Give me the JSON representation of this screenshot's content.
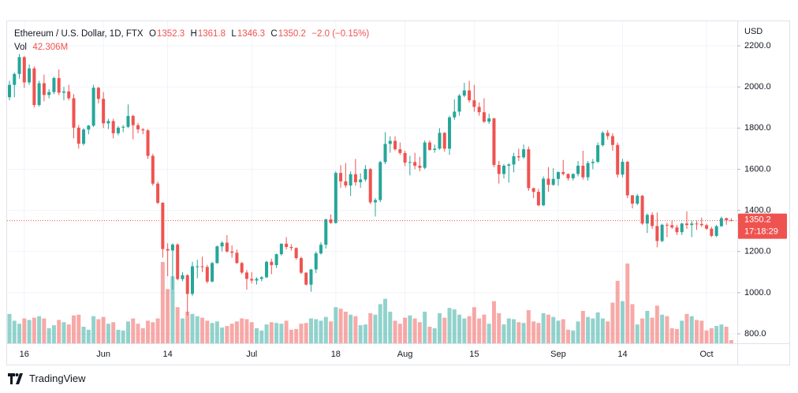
{
  "chart_data": {
    "type": "candlestick",
    "legend": {
      "symbol": "Ethereum / U.S. Dollar, 1D, FTX",
      "ohlc_letters": [
        "O",
        "H",
        "L",
        "C"
      ],
      "change_label": "−2.0 (−0.15%)",
      "volume_name": "Vol",
      "volume_label": "42.306M"
    },
    "currency": "USD",
    "countdown": "17:18:29",
    "brand": "TradingView",
    "up_color": "#26a69a",
    "down_color": "#ef5350",
    "grid": true,
    "ylim": [
      754,
      2319
    ],
    "yticks": [
      {
        "value": 800,
        "label": "800.0"
      },
      {
        "value": 1000,
        "label": "1000.0"
      },
      {
        "value": 1200,
        "label": "1200.0"
      },
      {
        "value": 1400,
        "label": "1400.0"
      },
      {
        "value": 1600,
        "label": "1600.0"
      },
      {
        "value": 1800,
        "label": "1800.0"
      },
      {
        "value": 2000,
        "label": "2000.0"
      },
      {
        "value": 2200,
        "label": "2200.0"
      }
    ],
    "xticks": [
      {
        "value": "May 16",
        "label": "16"
      },
      {
        "value": "Jun 1",
        "label": "Jun"
      },
      {
        "value": "Jun 14",
        "label": "14"
      },
      {
        "value": "Jul 1",
        "label": "Jul"
      },
      {
        "value": "Jul 18",
        "label": "18"
      },
      {
        "value": "Aug 1",
        "label": "Aug"
      },
      {
        "value": "Aug 15",
        "label": "15"
      },
      {
        "value": "Sep 1",
        "label": "Sep"
      },
      {
        "value": "Sep 14",
        "label": "14"
      },
      {
        "value": "Oct 1",
        "label": "Oct"
      }
    ],
    "categories": [
      "May 13",
      "May 14",
      "May 15",
      "May 16",
      "May 17",
      "May 18",
      "May 19",
      "May 20",
      "May 21",
      "May 22",
      "May 23",
      "May 24",
      "May 25",
      "May 26",
      "May 27",
      "May 28",
      "May 29",
      "May 30",
      "May 31",
      "Jun 1",
      "Jun 2",
      "Jun 3",
      "Jun 4",
      "Jun 5",
      "Jun 6",
      "Jun 7",
      "Jun 8",
      "Jun 9",
      "Jun 10",
      "Jun 11",
      "Jun 12",
      "Jun 13",
      "Jun 14",
      "Jun 15",
      "Jun 16",
      "Jun 17",
      "Jun 18",
      "Jun 19",
      "Jun 20",
      "Jun 21",
      "Jun 22",
      "Jun 23",
      "Jun 24",
      "Jun 25",
      "Jun 26",
      "Jun 27",
      "Jun 28",
      "Jun 29",
      "Jun 30",
      "Jul 1",
      "Jul 2",
      "Jul 3",
      "Jul 4",
      "Jul 5",
      "Jul 6",
      "Jul 7",
      "Jul 8",
      "Jul 9",
      "Jul 10",
      "Jul 11",
      "Jul 12",
      "Jul 13",
      "Jul 14",
      "Jul 15",
      "Jul 16",
      "Jul 17",
      "Jul 18",
      "Jul 19",
      "Jul 20",
      "Jul 21",
      "Jul 22",
      "Jul 23",
      "Jul 24",
      "Jul 25",
      "Jul 26",
      "Jul 27",
      "Jul 28",
      "Jul 29",
      "Jul 30",
      "Jul 31",
      "Aug 1",
      "Aug 2",
      "Aug 3",
      "Aug 4",
      "Aug 5",
      "Aug 6",
      "Aug 7",
      "Aug 8",
      "Aug 9",
      "Aug 10",
      "Aug 11",
      "Aug 12",
      "Aug 13",
      "Aug 14",
      "Aug 15",
      "Aug 16",
      "Aug 17",
      "Aug 18",
      "Aug 19",
      "Aug 20",
      "Aug 21",
      "Aug 22",
      "Aug 23",
      "Aug 24",
      "Aug 25",
      "Aug 26",
      "Aug 27",
      "Aug 28",
      "Aug 29",
      "Aug 30",
      "Aug 31",
      "Sep 1",
      "Sep 2",
      "Sep 3",
      "Sep 4",
      "Sep 5",
      "Sep 6",
      "Sep 7",
      "Sep 8",
      "Sep 9",
      "Sep 10",
      "Sep 11",
      "Sep 12",
      "Sep 13",
      "Sep 14",
      "Sep 15",
      "Sep 16",
      "Sep 17",
      "Sep 18",
      "Sep 19",
      "Sep 20",
      "Sep 21",
      "Sep 22",
      "Sep 23",
      "Sep 24",
      "Sep 25",
      "Sep 26",
      "Sep 27",
      "Sep 28",
      "Sep 29",
      "Sep 30",
      "Oct 1",
      "Oct 2",
      "Oct 3",
      "Oct 4",
      "Oct 5",
      "Oct 6"
    ],
    "candle_fields": [
      "open",
      "high",
      "low",
      "close",
      "volume"
    ],
    "candles": [
      [
        1950,
        2030,
        1935,
        2010,
        390
      ],
      [
        2010,
        2070,
        1950,
        2063,
        300
      ],
      [
        2063,
        2160,
        2040,
        2145,
        260
      ],
      [
        2145,
        2150,
        1995,
        2022,
        330
      ],
      [
        2022,
        2110,
        2010,
        2090,
        310
      ],
      [
        2090,
        2100,
        1900,
        1912,
        340
      ],
      [
        1912,
        2030,
        1905,
        2018,
        360
      ],
      [
        2018,
        2060,
        1930,
        1961,
        330
      ],
      [
        1961,
        1990,
        1945,
        1975,
        200
      ],
      [
        1975,
        2050,
        1965,
        2043,
        240
      ],
      [
        2043,
        2085,
        1960,
        1972,
        310
      ],
      [
        1972,
        2000,
        1935,
        1978,
        280
      ],
      [
        1978,
        2010,
        1935,
        1945,
        250
      ],
      [
        1945,
        1965,
        1750,
        1802,
        370
      ],
      [
        1802,
        1815,
        1700,
        1724,
        380
      ],
      [
        1724,
        1800,
        1715,
        1793,
        220
      ],
      [
        1793,
        1815,
        1770,
        1812,
        180
      ],
      [
        1812,
        2010,
        1805,
        1996,
        360
      ],
      [
        1996,
        2000,
        1920,
        1942,
        320
      ],
      [
        1942,
        1975,
        1800,
        1823,
        350
      ],
      [
        1823,
        1845,
        1795,
        1834,
        260
      ],
      [
        1834,
        1845,
        1750,
        1775,
        280
      ],
      [
        1775,
        1810,
        1765,
        1802,
        180
      ],
      [
        1802,
        1815,
        1780,
        1806,
        170
      ],
      [
        1806,
        1915,
        1800,
        1859,
        290
      ],
      [
        1859,
        1865,
        1745,
        1814,
        330
      ],
      [
        1814,
        1825,
        1775,
        1794,
        260
      ],
      [
        1794,
        1800,
        1770,
        1789,
        200
      ],
      [
        1789,
        1795,
        1650,
        1665,
        300
      ],
      [
        1665,
        1675,
        1520,
        1530,
        280
      ],
      [
        1530,
        1540,
        1430,
        1437,
        330
      ],
      [
        1437,
        1440,
        1170,
        1212,
        1080
      ],
      [
        1212,
        1240,
        1080,
        1205,
        720
      ],
      [
        1205,
        1240,
        1015,
        1234,
        890
      ],
      [
        1234,
        1240,
        1060,
        1066,
        480
      ],
      [
        1066,
        1100,
        1055,
        1085,
        330
      ],
      [
        1085,
        1090,
        890,
        994,
        420
      ],
      [
        994,
        1150,
        985,
        1128,
        390
      ],
      [
        1128,
        1160,
        1070,
        1128,
        360
      ],
      [
        1128,
        1175,
        1100,
        1125,
        340
      ],
      [
        1125,
        1135,
        1045,
        1054,
        300
      ],
      [
        1054,
        1150,
        1050,
        1144,
        270
      ],
      [
        1144,
        1230,
        1140,
        1225,
        290
      ],
      [
        1225,
        1250,
        1200,
        1243,
        210
      ],
      [
        1243,
        1280,
        1195,
        1200,
        230
      ],
      [
        1200,
        1230,
        1170,
        1194,
        260
      ],
      [
        1194,
        1210,
        1140,
        1144,
        290
      ],
      [
        1144,
        1150,
        1090,
        1098,
        330
      ],
      [
        1098,
        1110,
        1015,
        1067,
        320
      ],
      [
        1067,
        1100,
        1045,
        1059,
        280
      ],
      [
        1059,
        1075,
        1040,
        1067,
        200
      ],
      [
        1067,
        1080,
        1055,
        1075,
        170
      ],
      [
        1075,
        1155,
        1070,
        1150,
        250
      ],
      [
        1150,
        1165,
        1090,
        1134,
        280
      ],
      [
        1134,
        1190,
        1120,
        1187,
        270
      ],
      [
        1187,
        1240,
        1180,
        1238,
        260
      ],
      [
        1238,
        1270,
        1210,
        1222,
        300
      ],
      [
        1222,
        1235,
        1205,
        1217,
        180
      ],
      [
        1217,
        1220,
        1160,
        1168,
        190
      ],
      [
        1168,
        1175,
        1090,
        1097,
        260
      ],
      [
        1097,
        1100,
        1035,
        1039,
        270
      ],
      [
        1039,
        1115,
        1005,
        1113,
        330
      ],
      [
        1113,
        1200,
        1095,
        1191,
        320
      ],
      [
        1191,
        1245,
        1185,
        1233,
        300
      ],
      [
        1233,
        1360,
        1215,
        1356,
        350
      ],
      [
        1356,
        1380,
        1335,
        1339,
        290
      ],
      [
        1339,
        1590,
        1335,
        1582,
        480
      ],
      [
        1582,
        1620,
        1510,
        1541,
        460
      ],
      [
        1541,
        1630,
        1510,
        1521,
        420
      ],
      [
        1521,
        1590,
        1470,
        1576,
        380
      ],
      [
        1576,
        1650,
        1520,
        1537,
        360
      ],
      [
        1537,
        1580,
        1510,
        1550,
        240
      ],
      [
        1550,
        1620,
        1540,
        1601,
        250
      ],
      [
        1601,
        1605,
        1430,
        1439,
        400
      ],
      [
        1439,
        1460,
        1370,
        1450,
        380
      ],
      [
        1450,
        1640,
        1440,
        1635,
        520
      ],
      [
        1635,
        1780,
        1625,
        1723,
        590
      ],
      [
        1723,
        1760,
        1680,
        1738,
        420
      ],
      [
        1738,
        1760,
        1690,
        1697,
        300
      ],
      [
        1697,
        1730,
        1670,
        1679,
        260
      ],
      [
        1679,
        1690,
        1615,
        1632,
        340
      ],
      [
        1632,
        1665,
        1570,
        1635,
        370
      ],
      [
        1635,
        1680,
        1600,
        1617,
        330
      ],
      [
        1617,
        1660,
        1590,
        1607,
        280
      ],
      [
        1607,
        1740,
        1600,
        1730,
        420
      ],
      [
        1730,
        1740,
        1690,
        1694,
        220
      ],
      [
        1694,
        1720,
        1680,
        1700,
        200
      ],
      [
        1700,
        1800,
        1695,
        1777,
        400
      ],
      [
        1777,
        1780,
        1685,
        1700,
        340
      ],
      [
        1700,
        1860,
        1670,
        1852,
        470
      ],
      [
        1852,
        1940,
        1840,
        1880,
        450
      ],
      [
        1880,
        1965,
        1860,
        1958,
        380
      ],
      [
        1958,
        2020,
        1950,
        1983,
        330
      ],
      [
        1983,
        2030,
        1925,
        1935,
        360
      ],
      [
        1935,
        2010,
        1880,
        1903,
        480
      ],
      [
        1903,
        1925,
        1860,
        1877,
        330
      ],
      [
        1877,
        1945,
        1825,
        1831,
        380
      ],
      [
        1831,
        1870,
        1820,
        1847,
        260
      ],
      [
        1847,
        1850,
        1610,
        1621,
        560
      ],
      [
        1621,
        1640,
        1530,
        1577,
        400
      ],
      [
        1577,
        1625,
        1555,
        1617,
        250
      ],
      [
        1617,
        1630,
        1535,
        1623,
        330
      ],
      [
        1623,
        1680,
        1585,
        1663,
        320
      ],
      [
        1663,
        1700,
        1640,
        1658,
        280
      ],
      [
        1658,
        1720,
        1650,
        1697,
        270
      ],
      [
        1697,
        1710,
        1495,
        1508,
        440
      ],
      [
        1508,
        1510,
        1460,
        1490,
        290
      ],
      [
        1490,
        1505,
        1420,
        1425,
        270
      ],
      [
        1425,
        1565,
        1420,
        1554,
        400
      ],
      [
        1554,
        1610,
        1490,
        1524,
        380
      ],
      [
        1524,
        1605,
        1520,
        1553,
        350
      ],
      [
        1553,
        1590,
        1520,
        1586,
        300
      ],
      [
        1586,
        1645,
        1570,
        1577,
        320
      ],
      [
        1577,
        1580,
        1545,
        1556,
        180
      ],
      [
        1556,
        1580,
        1545,
        1577,
        170
      ],
      [
        1577,
        1640,
        1565,
        1617,
        290
      ],
      [
        1617,
        1690,
        1550,
        1561,
        430
      ],
      [
        1561,
        1640,
        1545,
        1630,
        350
      ],
      [
        1630,
        1650,
        1600,
        1636,
        330
      ],
      [
        1636,
        1730,
        1630,
        1717,
        410
      ],
      [
        1717,
        1785,
        1710,
        1777,
        330
      ],
      [
        1777,
        1790,
        1745,
        1761,
        290
      ],
      [
        1761,
        1775,
        1690,
        1718,
        540
      ],
      [
        1718,
        1730,
        1560,
        1574,
        830
      ],
      [
        1574,
        1650,
        1560,
        1636,
        560
      ],
      [
        1636,
        1640,
        1460,
        1473,
        1060
      ],
      [
        1473,
        1475,
        1410,
        1433,
        520
      ],
      [
        1433,
        1480,
        1425,
        1471,
        250
      ],
      [
        1471,
        1475,
        1330,
        1336,
        330
      ],
      [
        1336,
        1385,
        1290,
        1378,
        430
      ],
      [
        1378,
        1390,
        1310,
        1324,
        340
      ],
      [
        1324,
        1390,
        1220,
        1251,
        500
      ],
      [
        1251,
        1335,
        1245,
        1330,
        380
      ],
      [
        1330,
        1340,
        1270,
        1328,
        360
      ],
      [
        1328,
        1350,
        1310,
        1317,
        200
      ],
      [
        1317,
        1330,
        1280,
        1294,
        190
      ],
      [
        1294,
        1340,
        1280,
        1336,
        300
      ],
      [
        1336,
        1395,
        1310,
        1329,
        390
      ],
      [
        1329,
        1350,
        1270,
        1336,
        360
      ],
      [
        1336,
        1350,
        1305,
        1334,
        310
      ],
      [
        1334,
        1365,
        1320,
        1328,
        300
      ],
      [
        1328,
        1335,
        1305,
        1311,
        170
      ],
      [
        1311,
        1320,
        1270,
        1276,
        200
      ],
      [
        1276,
        1330,
        1270,
        1323,
        230
      ],
      [
        1323,
        1370,
        1320,
        1362,
        250
      ],
      [
        1362,
        1365,
        1330,
        1352,
        220
      ],
      [
        1352.3,
        1361.8,
        1346.3,
        1350.2,
        42.306
      ]
    ]
  }
}
